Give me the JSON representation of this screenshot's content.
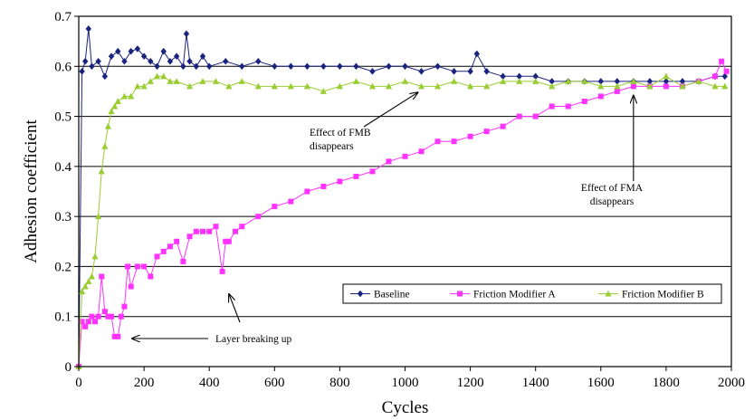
{
  "chart_data": {
    "type": "line",
    "xlabel": "Cycles",
    "ylabel": "Adhesion coefficient",
    "xlim": [
      0,
      2000
    ],
    "ylim": [
      0,
      0.7
    ],
    "xticks": [
      0,
      200,
      400,
      600,
      800,
      1000,
      1200,
      1400,
      1600,
      1800,
      2000
    ],
    "xtick_labels": [
      "0",
      "200",
      "400",
      "600",
      "800",
      "1000",
      "1200",
      "1400",
      "1600",
      "1800",
      "2000"
    ],
    "yticks": [
      0,
      0.1,
      0.2,
      0.3,
      0.4,
      0.5,
      0.6,
      0.7
    ],
    "ytick_labels": [
      "0",
      "0.1",
      "0.2",
      "0.3",
      "0.4",
      "0.5",
      "0.6",
      "0.7"
    ],
    "grid": "horizontal",
    "legend_position": "lower-right",
    "series": [
      {
        "name": "Baseline",
        "color": "#1a237e",
        "marker": "diamond",
        "x": [
          0,
          10,
          20,
          30,
          40,
          60,
          80,
          100,
          120,
          140,
          160,
          180,
          200,
          220,
          240,
          260,
          280,
          300,
          320,
          330,
          340,
          360,
          380,
          400,
          450,
          500,
          550,
          600,
          650,
          700,
          750,
          800,
          850,
          900,
          950,
          1000,
          1050,
          1100,
          1150,
          1200,
          1220,
          1250,
          1300,
          1350,
          1400,
          1450,
          1500,
          1550,
          1600,
          1650,
          1700,
          1750,
          1800,
          1850,
          1900,
          1950,
          1980
        ],
        "y": [
          0.0,
          0.59,
          0.61,
          0.675,
          0.6,
          0.61,
          0.58,
          0.62,
          0.63,
          0.61,
          0.63,
          0.635,
          0.62,
          0.61,
          0.6,
          0.63,
          0.61,
          0.62,
          0.6,
          0.665,
          0.61,
          0.6,
          0.62,
          0.6,
          0.61,
          0.6,
          0.61,
          0.6,
          0.6,
          0.6,
          0.6,
          0.6,
          0.6,
          0.59,
          0.6,
          0.6,
          0.59,
          0.6,
          0.59,
          0.59,
          0.625,
          0.59,
          0.58,
          0.58,
          0.58,
          0.57,
          0.57,
          0.57,
          0.57,
          0.57,
          0.57,
          0.57,
          0.57,
          0.57,
          0.57,
          0.58,
          0.58
        ]
      },
      {
        "name": "Friction Modifier A",
        "color": "#ff33ff",
        "marker": "square",
        "x": [
          0,
          10,
          20,
          30,
          40,
          50,
          60,
          70,
          80,
          90,
          100,
          110,
          120,
          130,
          140,
          150,
          160,
          180,
          200,
          220,
          240,
          260,
          280,
          300,
          320,
          340,
          360,
          380,
          400,
          420,
          440,
          450,
          460,
          480,
          500,
          550,
          600,
          650,
          700,
          750,
          800,
          850,
          900,
          950,
          1000,
          1050,
          1100,
          1150,
          1200,
          1250,
          1300,
          1350,
          1400,
          1450,
          1500,
          1550,
          1600,
          1650,
          1700,
          1750,
          1800,
          1850,
          1900,
          1950,
          1970,
          1985
        ],
        "y": [
          0.0,
          0.09,
          0.08,
          0.09,
          0.1,
          0.09,
          0.1,
          0.18,
          0.11,
          0.1,
          0.1,
          0.06,
          0.06,
          0.1,
          0.12,
          0.2,
          0.16,
          0.2,
          0.2,
          0.18,
          0.22,
          0.23,
          0.24,
          0.25,
          0.21,
          0.26,
          0.27,
          0.27,
          0.27,
          0.28,
          0.19,
          0.25,
          0.25,
          0.27,
          0.28,
          0.3,
          0.32,
          0.33,
          0.35,
          0.36,
          0.37,
          0.38,
          0.39,
          0.41,
          0.42,
          0.43,
          0.45,
          0.45,
          0.46,
          0.47,
          0.48,
          0.5,
          0.5,
          0.52,
          0.52,
          0.53,
          0.54,
          0.55,
          0.56,
          0.56,
          0.56,
          0.56,
          0.57,
          0.58,
          0.61,
          0.59
        ]
      },
      {
        "name": "Friction Modifier B",
        "color": "#9acd32",
        "marker": "triangle",
        "x": [
          0,
          10,
          20,
          30,
          40,
          50,
          60,
          70,
          80,
          90,
          100,
          110,
          120,
          140,
          160,
          180,
          200,
          220,
          240,
          260,
          280,
          300,
          340,
          380,
          420,
          460,
          500,
          550,
          600,
          650,
          700,
          750,
          800,
          850,
          900,
          950,
          1000,
          1050,
          1100,
          1150,
          1200,
          1250,
          1300,
          1350,
          1400,
          1450,
          1500,
          1550,
          1600,
          1650,
          1700,
          1750,
          1800,
          1850,
          1900,
          1950,
          1980
        ],
        "y": [
          0.0,
          0.15,
          0.16,
          0.17,
          0.18,
          0.22,
          0.3,
          0.39,
          0.44,
          0.48,
          0.51,
          0.52,
          0.53,
          0.54,
          0.54,
          0.56,
          0.56,
          0.57,
          0.58,
          0.58,
          0.57,
          0.57,
          0.56,
          0.57,
          0.57,
          0.56,
          0.57,
          0.56,
          0.56,
          0.56,
          0.56,
          0.55,
          0.56,
          0.57,
          0.56,
          0.56,
          0.57,
          0.56,
          0.56,
          0.57,
          0.56,
          0.56,
          0.57,
          0.57,
          0.57,
          0.56,
          0.57,
          0.57,
          0.56,
          0.56,
          0.57,
          0.56,
          0.58,
          0.56,
          0.57,
          0.56,
          0.56
        ]
      }
    ],
    "annotations": [
      {
        "id": "fmb",
        "lines": [
          "Effect of FMB",
          "disappears"
        ],
        "point_to": [
          1050,
          0.555
        ]
      },
      {
        "id": "fma",
        "lines": [
          "Effect of FMA",
          "disappears"
        ],
        "point_to": [
          1700,
          0.545
        ]
      },
      {
        "id": "layer",
        "lines": [
          "Layer breaking up"
        ],
        "point_to": [
          130,
          0.065
        ]
      },
      {
        "id": "layer2",
        "lines": [],
        "point_to": [
          455,
          0.17
        ]
      }
    ]
  }
}
